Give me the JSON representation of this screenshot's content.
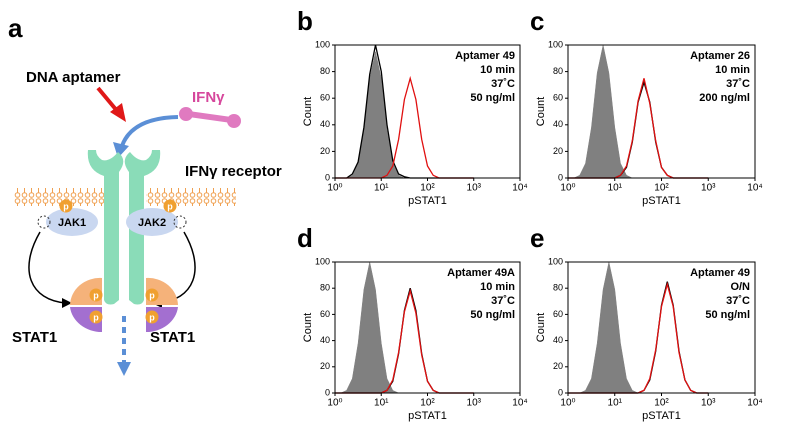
{
  "diagram": {
    "panel_label": "a",
    "aptamer": "DNA aptamer",
    "ligand": "IFNγ",
    "receptor": "IFNγ receptor",
    "jak1": "JAK1",
    "jak2": "JAK2",
    "stat_left": "STAT1",
    "stat_right": "STAT1",
    "phospho": [
      "p",
      "p",
      "p",
      "p",
      "p",
      "p"
    ]
  },
  "chart_data": [
    {
      "type": "area",
      "panel_label": "b",
      "annotation": [
        "Aptamer 49",
        "10 min",
        "37˚C",
        "50 ng/ml"
      ],
      "x_label": "pSTAT1",
      "y_label": "Count",
      "log_x": true,
      "xlim": [
        1,
        10000
      ],
      "xticks": [
        {
          "value": 1,
          "label": "10⁰"
        },
        {
          "value": 10,
          "label": "10¹"
        },
        {
          "value": 100,
          "label": "10²"
        },
        {
          "value": 1000,
          "label": "10³"
        },
        {
          "value": 10000,
          "label": "10⁴"
        }
      ],
      "ylim": [
        0,
        100
      ],
      "yticks": [
        0,
        20,
        40,
        60,
        80,
        100
      ],
      "x": [
        1,
        1.33,
        1.78,
        2.37,
        3.16,
        4.22,
        5.62,
        7.5,
        10,
        13.3,
        17.8,
        23.7,
        31.6,
        42.2,
        56.2,
        75,
        100,
        133,
        178,
        237,
        316,
        422,
        562,
        750,
        1000
      ],
      "series": [
        {
          "color": "#808080",
          "fill": true,
          "values": [
            0,
            0,
            0,
            2,
            11,
            36,
            75,
            95,
            75,
            36,
            11,
            2,
            0,
            0,
            0,
            0,
            0,
            0,
            0,
            0,
            0,
            0,
            0,
            0,
            0
          ]
        },
        {
          "color": "#000000",
          "fill": false,
          "values": [
            0,
            0,
            0,
            3,
            12,
            38,
            78,
            100,
            80,
            40,
            13,
            3,
            1,
            0,
            0,
            0,
            0,
            0,
            0,
            0,
            0,
            0,
            0,
            0,
            0
          ]
        },
        {
          "color": "#e01010",
          "fill": false,
          "values": [
            0,
            0,
            0,
            0,
            0,
            0,
            0,
            0,
            0,
            2,
            9,
            29,
            59,
            75,
            59,
            29,
            9,
            2,
            0,
            0,
            0,
            0,
            0,
            0,
            0
          ]
        }
      ]
    },
    {
      "type": "area",
      "panel_label": "c",
      "annotation": [
        "Aptamer 26",
        "10 min",
        "37˚C",
        "200 ng/ml"
      ],
      "x_label": "pSTAT1",
      "y_label": "Count",
      "log_x": true,
      "xlim": [
        1,
        10000
      ],
      "xticks": [
        {
          "value": 1,
          "label": "10⁰"
        },
        {
          "value": 10,
          "label": "10¹"
        },
        {
          "value": 100,
          "label": "10²"
        },
        {
          "value": 1000,
          "label": "10³"
        },
        {
          "value": 10000,
          "label": "10⁴"
        }
      ],
      "ylim": [
        0,
        100
      ],
      "yticks": [
        0,
        20,
        40,
        60,
        80,
        100
      ],
      "x": [
        1,
        1.33,
        1.78,
        2.37,
        3.16,
        4.22,
        5.62,
        7.5,
        10,
        13.3,
        17.8,
        23.7,
        31.6,
        42.2,
        56.2,
        75,
        100,
        133,
        178,
        237,
        316,
        422,
        562,
        750,
        1000
      ],
      "series": [
        {
          "color": "#808080",
          "fill": true,
          "values": [
            0,
            0,
            2,
            11,
            38,
            79,
            100,
            79,
            38,
            11,
            2,
            0,
            0,
            0,
            0,
            0,
            0,
            0,
            0,
            0,
            0,
            0,
            0,
            0,
            0
          ]
        },
        {
          "color": "#000000",
          "fill": false,
          "values": [
            0,
            0,
            0,
            0,
            0,
            0,
            0,
            0,
            0,
            2,
            8,
            27,
            57,
            72,
            57,
            27,
            8,
            2,
            0,
            0,
            0,
            0,
            0,
            0,
            0
          ]
        },
        {
          "color": "#e01010",
          "fill": false,
          "values": [
            0,
            0,
            0,
            0,
            0,
            0,
            0,
            0,
            0,
            2,
            9,
            28,
            58,
            75,
            56,
            28,
            8,
            2,
            0,
            0,
            0,
            0,
            0,
            0,
            0
          ]
        }
      ]
    },
    {
      "type": "area",
      "panel_label": "d",
      "annotation": [
        "Aptamer 49A",
        "10 min",
        "37˚C",
        "50 ng/ml"
      ],
      "x_label": "pSTAT1",
      "y_label": "Count",
      "log_x": true,
      "xlim": [
        1,
        10000
      ],
      "xticks": [
        {
          "value": 1,
          "label": "10⁰"
        },
        {
          "value": 10,
          "label": "10¹"
        },
        {
          "value": 100,
          "label": "10²"
        },
        {
          "value": 1000,
          "label": "10³"
        },
        {
          "value": 10000,
          "label": "10⁴"
        }
      ],
      "ylim": [
        0,
        100
      ],
      "yticks": [
        0,
        20,
        40,
        60,
        80,
        100
      ],
      "x": [
        1,
        1.33,
        1.78,
        2.37,
        3.16,
        4.22,
        5.62,
        7.5,
        10,
        13.3,
        17.8,
        23.7,
        31.6,
        42.2,
        56.2,
        75,
        100,
        133,
        178,
        237,
        316,
        422,
        562,
        750,
        1000
      ],
      "series": [
        {
          "color": "#808080",
          "fill": true,
          "values": [
            0,
            0,
            2,
            11,
            38,
            79,
            100,
            79,
            38,
            11,
            2,
            0,
            0,
            0,
            0,
            0,
            0,
            0,
            0,
            0,
            0,
            0,
            0,
            0,
            0
          ]
        },
        {
          "color": "#000000",
          "fill": false,
          "values": [
            0,
            0,
            0,
            0,
            0,
            0,
            0,
            0,
            0,
            2,
            9,
            30,
            63,
            80,
            63,
            30,
            9,
            2,
            0,
            0,
            0,
            0,
            0,
            0,
            0
          ]
        },
        {
          "color": "#e01010",
          "fill": false,
          "values": [
            0,
            0,
            0,
            0,
            0,
            0,
            0,
            0,
            0,
            2,
            10,
            31,
            62,
            78,
            61,
            29,
            9,
            2,
            0,
            0,
            0,
            0,
            0,
            0,
            0
          ]
        }
      ]
    },
    {
      "type": "area",
      "panel_label": "e",
      "annotation": [
        "Aptamer 49",
        "O/N",
        "37˚C",
        "50 ng/ml"
      ],
      "x_label": "pSTAT1",
      "y_label": "Count",
      "log_x": true,
      "xlim": [
        1,
        10000
      ],
      "xticks": [
        {
          "value": 1,
          "label": "10⁰"
        },
        {
          "value": 10,
          "label": "10¹"
        },
        {
          "value": 100,
          "label": "10²"
        },
        {
          "value": 1000,
          "label": "10³"
        },
        {
          "value": 10000,
          "label": "10⁴"
        }
      ],
      "ylim": [
        0,
        100
      ],
      "yticks": [
        0,
        20,
        40,
        60,
        80,
        100
      ],
      "x": [
        1,
        1.33,
        1.78,
        2.37,
        3.16,
        4.22,
        5.62,
        7.5,
        10,
        13.3,
        17.8,
        23.7,
        31.6,
        42.2,
        56.2,
        75,
        100,
        133,
        178,
        237,
        316,
        422,
        562,
        750,
        1000
      ],
      "series": [
        {
          "color": "#808080",
          "fill": true,
          "values": [
            0,
            0,
            0,
            2,
            11,
            38,
            79,
            100,
            79,
            38,
            11,
            2,
            0,
            0,
            0,
            0,
            0,
            0,
            0,
            0,
            0,
            0,
            0,
            0,
            0
          ]
        },
        {
          "color": "#000000",
          "fill": false,
          "values": [
            0,
            0,
            0,
            0,
            0,
            0,
            0,
            0,
            0,
            0,
            0,
            0,
            0,
            2,
            10,
            32,
            67,
            85,
            67,
            32,
            10,
            2,
            0,
            0,
            0
          ]
        },
        {
          "color": "#e01010",
          "fill": false,
          "values": [
            0,
            0,
            0,
            0,
            0,
            0,
            0,
            0,
            0,
            0,
            0,
            0,
            0,
            2,
            11,
            33,
            66,
            83,
            66,
            31,
            10,
            2,
            0,
            0,
            0
          ]
        }
      ]
    }
  ]
}
